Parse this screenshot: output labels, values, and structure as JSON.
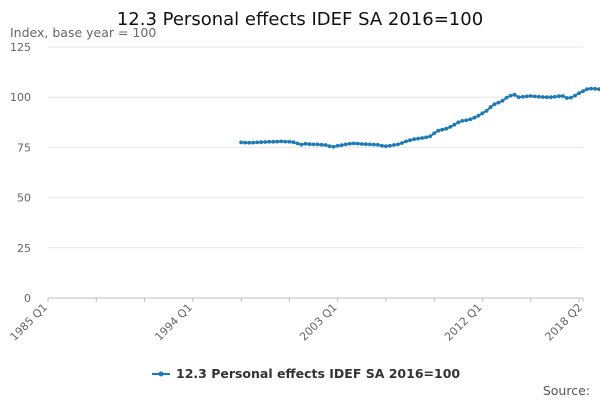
{
  "chart_data": {
    "type": "line",
    "title": "12.3 Personal effects IDEF SA 2016=100",
    "ylabel": "Index, base year = 100",
    "xlabel": "",
    "ylim": [
      0,
      125
    ],
    "yticks": [
      0,
      25,
      50,
      75,
      100,
      125
    ],
    "xtick_labels": [
      "1985 Q1",
      "1994 Q1",
      "2003 Q1",
      "2012 Q1",
      "2018 Q2"
    ],
    "x_range": [
      "1985 Q1",
      "2018 Q2"
    ],
    "grid": "horizontal",
    "legend_position": "bottom",
    "color": "#1f7bb6",
    "source_label": "Source:",
    "series": [
      {
        "name": "12.3 Personal effects IDEF SA 2016=100",
        "start": "1997 Q1",
        "values": [
          77.5,
          77.4,
          77.3,
          77.4,
          77.5,
          77.6,
          77.7,
          77.8,
          77.8,
          77.9,
          78.0,
          77.9,
          77.8,
          77.6,
          77.0,
          76.4,
          76.8,
          76.6,
          76.5,
          76.5,
          76.3,
          76.2,
          75.6,
          75.3,
          75.8,
          76.1,
          76.5,
          76.8,
          77.0,
          76.9,
          76.7,
          76.6,
          76.5,
          76.4,
          76.3,
          75.8,
          75.6,
          75.8,
          76.2,
          76.5,
          77.2,
          78.0,
          78.6,
          79.1,
          79.4,
          79.7,
          80.0,
          80.5,
          82.0,
          83.3,
          83.8,
          84.3,
          85.2,
          86.3,
          87.5,
          88.2,
          88.5,
          89.0,
          89.8,
          90.8,
          92.0,
          93.2,
          95.0,
          96.5,
          97.3,
          98.2,
          99.8,
          100.8,
          101.2,
          100.0,
          100.2,
          100.4,
          100.6,
          100.4,
          100.2,
          100.1,
          100.0,
          100.0,
          100.2,
          100.5,
          100.6,
          99.6,
          99.8,
          100.8,
          102.0,
          103.0,
          104.0,
          104.3,
          104.2,
          104.0
        ]
      }
    ]
  }
}
